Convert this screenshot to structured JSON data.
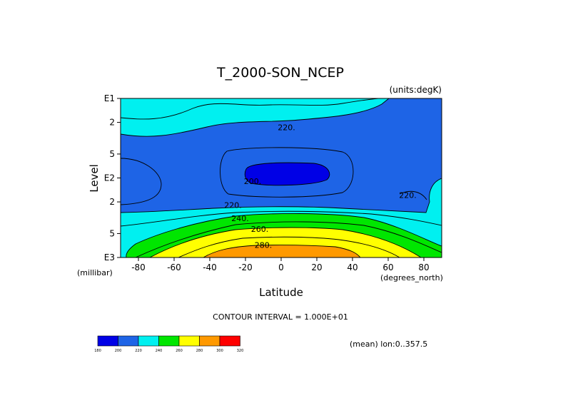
{
  "chart_data": {
    "type": "contour",
    "title": "T_2000-SON_NCEP",
    "units_label": "(units:degK)",
    "xlabel": "Latitude",
    "ylabel": "Level",
    "x_units": "(degrees_north)",
    "y_units": "(millibar)",
    "x_range": [
      -90,
      90
    ],
    "x_ticks": [
      -80,
      -60,
      -40,
      -20,
      0,
      20,
      40,
      60,
      80
    ],
    "y_scale": "log",
    "y_range_mb": [
      1000,
      10
    ],
    "y_ticks": [
      {
        "p": 10,
        "label": "E1"
      },
      {
        "p": 20,
        "label": "2"
      },
      {
        "p": 50,
        "label": "5"
      },
      {
        "p": 100,
        "label": "E2"
      },
      {
        "p": 200,
        "label": "2"
      },
      {
        "p": 500,
        "label": "5"
      },
      {
        "p": 1000,
        "label": "E3"
      }
    ],
    "contour_interval_text": "CONTOUR INTERVAL = 1.000E+01",
    "mean_text": "(mean) lon:0..357.5",
    "contour_labels": [
      {
        "text": "220.",
        "lat": 3,
        "p": 23
      },
      {
        "text": "200.",
        "lat": -16,
        "p": 110
      },
      {
        "text": "220.",
        "lat": -27,
        "p": 220
      },
      {
        "text": "240.",
        "lat": -23,
        "p": 320
      },
      {
        "text": "260.",
        "lat": -12,
        "p": 440
      },
      {
        "text": "280.",
        "lat": -10,
        "p": 700
      },
      {
        "text": "220.",
        "lat": 71,
        "p": 165
      }
    ],
    "legend": {
      "labels": [
        "180",
        "200",
        "220",
        "240",
        "260",
        "280",
        "300",
        "320"
      ],
      "colors": [
        "#0000e6",
        "#1e64e6",
        "#00f0f0",
        "#00e600",
        "#ffff00",
        "#ff9900",
        "#ff0000"
      ]
    }
  }
}
